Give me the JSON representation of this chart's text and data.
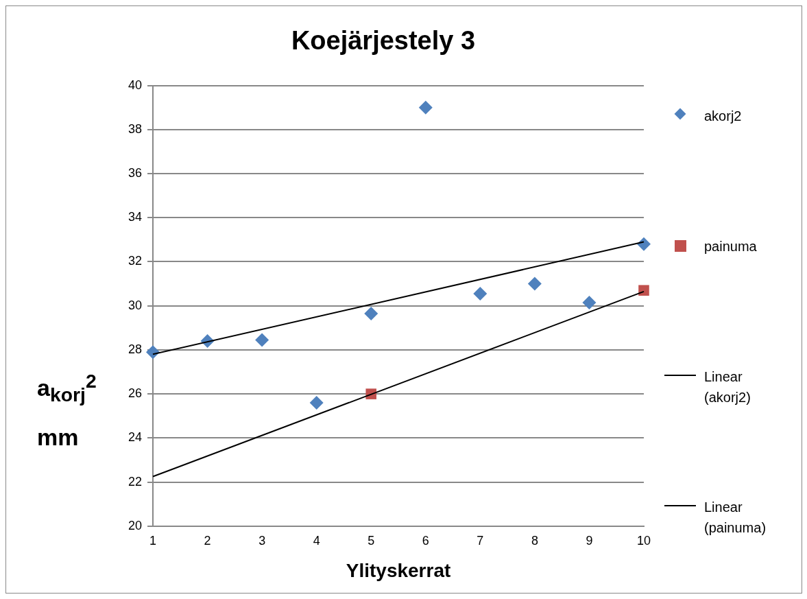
{
  "chart_data": {
    "type": "scatter",
    "title": "Koejärjestely 3",
    "xlabel": "Ylityskerrat",
    "ylabel": "a$_{korj}$$^{2}$ mm",
    "xlim": [
      1,
      10
    ],
    "xticks": [
      1,
      2,
      3,
      4,
      5,
      6,
      7,
      8,
      9,
      10
    ],
    "ylim": [
      20,
      40
    ],
    "yticks": [
      20,
      22,
      24,
      26,
      28,
      30,
      32,
      34,
      36,
      38,
      40
    ],
    "grid": "y",
    "legend": "right",
    "series": [
      {
        "name": "akorj2",
        "type": "scatter",
        "marker": "diamond",
        "color": "#4f81bd",
        "x": [
          1,
          2,
          3,
          4,
          5,
          6,
          7,
          8,
          9,
          10
        ],
        "values": [
          27.9,
          28.4,
          28.45,
          25.6,
          29.65,
          39.0,
          30.55,
          31.0,
          30.15,
          32.8
        ]
      },
      {
        "name": "painuma",
        "type": "scatter",
        "marker": "square",
        "color": "#c0504d",
        "x": [
          5,
          10
        ],
        "values": [
          26.0,
          30.7
        ]
      },
      {
        "name": "Linear (akorj2)",
        "type": "line",
        "marker": "none",
        "line_style": "solid",
        "color": "#000000",
        "x": [
          1,
          10
        ],
        "values": [
          27.8,
          32.9
        ]
      },
      {
        "name": "Linear (painuma)",
        "type": "line",
        "marker": "none",
        "line_style": "solid",
        "color": "#000000",
        "x": [
          1,
          10
        ],
        "values": [
          22.25,
          30.65
        ]
      }
    ]
  }
}
